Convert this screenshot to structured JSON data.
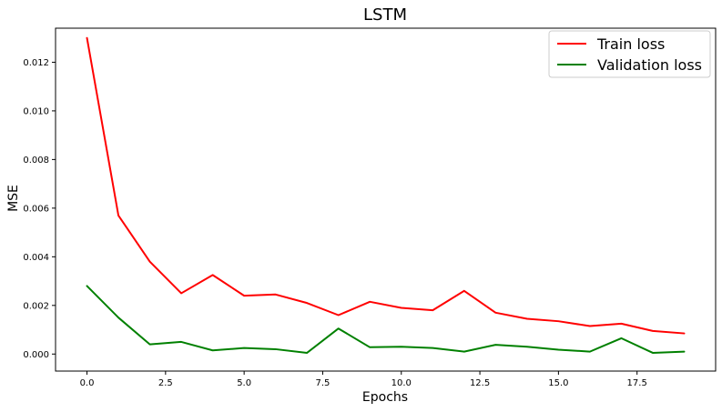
{
  "chart_data": {
    "type": "line",
    "title": "LSTM",
    "xlabel": "Epochs",
    "ylabel": "MSE",
    "x": [
      0,
      1,
      2,
      3,
      4,
      5,
      6,
      7,
      8,
      9,
      10,
      11,
      12,
      13,
      14,
      15,
      16,
      17,
      18,
      19
    ],
    "xlim": [
      -1,
      20
    ],
    "ylim": [
      -0.0007,
      0.0134
    ],
    "xticks": [
      0.0,
      2.5,
      5.0,
      7.5,
      10.0,
      12.5,
      15.0,
      17.5
    ],
    "xtick_labels": [
      "0.0",
      "2.5",
      "5.0",
      "7.5",
      "10.0",
      "12.5",
      "15.0",
      "17.5"
    ],
    "yticks": [
      0.0,
      0.002,
      0.004,
      0.006,
      0.008,
      0.01,
      0.012
    ],
    "ytick_labels": [
      "0.000",
      "0.002",
      "0.004",
      "0.006",
      "0.008",
      "0.010",
      "0.012"
    ],
    "grid": false,
    "legend_position": "top-right",
    "series": [
      {
        "name": "Train loss",
        "color": "#ff0000",
        "values": [
          0.013,
          0.0057,
          0.0038,
          0.0025,
          0.00325,
          0.0024,
          0.00245,
          0.0021,
          0.0016,
          0.00215,
          0.0019,
          0.0018,
          0.0026,
          0.0017,
          0.00145,
          0.00135,
          0.00115,
          0.00125,
          0.00095,
          0.00085
        ]
      },
      {
        "name": "Validation loss",
        "color": "#008000",
        "values": [
          0.0028,
          0.0015,
          0.0004,
          0.0005,
          0.00015,
          0.00025,
          0.0002,
          5e-05,
          0.00105,
          0.00028,
          0.0003,
          0.00025,
          0.0001,
          0.00038,
          0.0003,
          0.00018,
          0.0001,
          0.00065,
          5e-05,
          0.0001
        ]
      }
    ]
  }
}
